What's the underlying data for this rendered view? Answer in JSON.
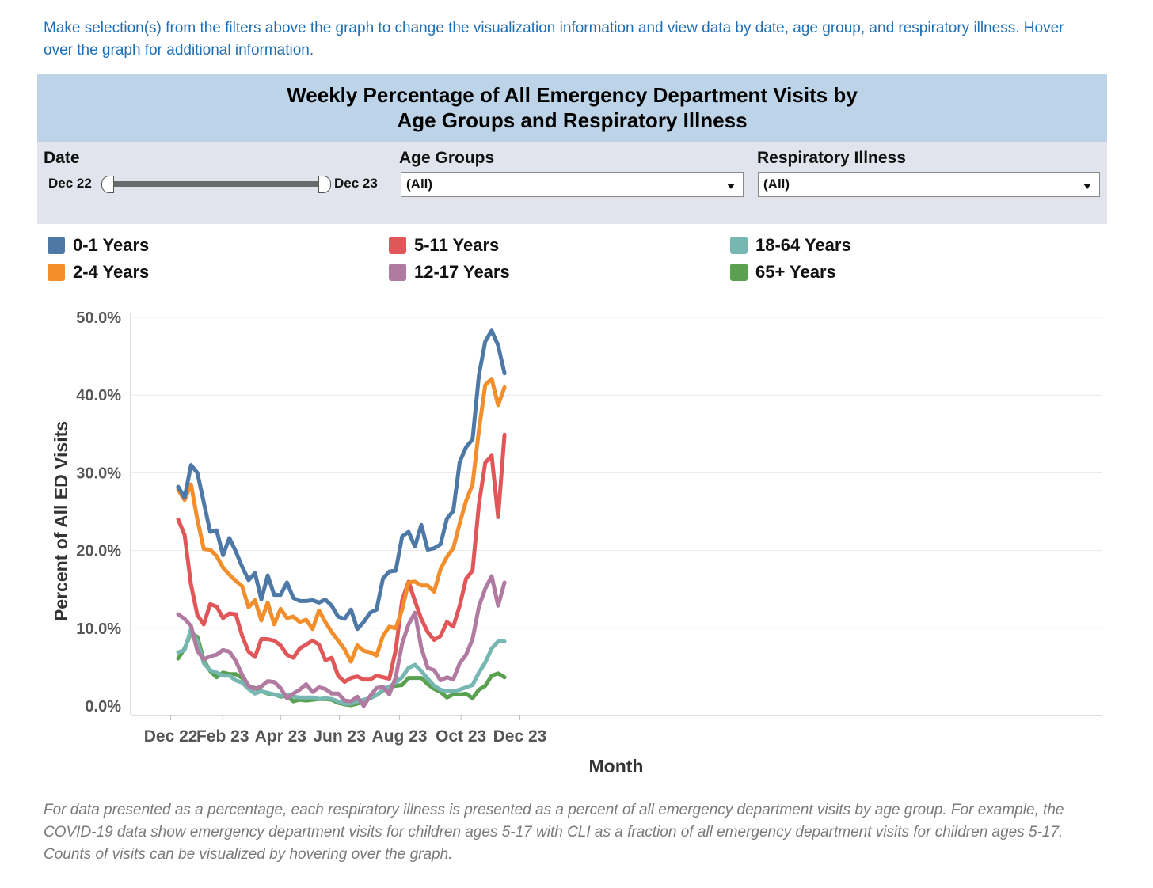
{
  "intro_text": "Make selection(s) from the filters above the graph to change the visualization information and view data by date, age group, and respiratory illness. Hover over the graph for additional information.",
  "header": {
    "title_line1": "Weekly Percentage of All Emergency Department Visits by",
    "title_line2": "Age Groups and Respiratory Illness"
  },
  "filters": {
    "date": {
      "label": "Date",
      "start": "Dec 22",
      "end": "Dec 23"
    },
    "age_groups": {
      "label": "Age Groups",
      "selected": "(All)"
    },
    "respiratory_illness": {
      "label": "Respiratory Illness",
      "selected": "(All)"
    }
  },
  "legend": [
    {
      "label": "0-1 Years",
      "color": "#4e79a7"
    },
    {
      "label": "2-4 Years",
      "color": "#f28e2b"
    },
    {
      "label": "5-11 Years",
      "color": "#e15759"
    },
    {
      "label": "12-17 Years",
      "color": "#b07aa1"
    },
    {
      "label": "18-64 Years",
      "color": "#76b7b2"
    },
    {
      "label": "65+ Years",
      "color": "#59a14f"
    }
  ],
  "chart_data": {
    "type": "line",
    "xlabel": "Month",
    "ylabel": "Percent of All ED Visits",
    "ylim": [
      0,
      50
    ],
    "y_ticks": [
      "0.0%",
      "10.0%",
      "20.0%",
      "30.0%",
      "40.0%",
      "50.0%"
    ],
    "x_ticks": [
      "Dec 22",
      "Feb 23",
      "Apr 23",
      "Jun 23",
      "Aug 23",
      "Oct 23",
      "Dec 23"
    ],
    "grid": true,
    "x_weeks": 55,
    "series": [
      {
        "name": "0-1 Years",
        "color": "#4e79a7",
        "values": [
          28.2,
          26.8,
          31.0,
          30.0,
          26.2,
          22.4,
          22.6,
          19.4,
          21.6,
          19.9,
          17.9,
          16.2,
          17.1,
          13.7,
          16.8,
          14.3,
          14.3,
          15.9,
          13.9,
          13.5,
          13.5,
          13.6,
          13.3,
          13.7,
          12.9,
          11.5,
          11.2,
          12.4,
          9.9,
          10.8,
          12.0,
          12.4,
          16.4,
          17.3,
          17.4,
          21.8,
          22.4,
          20.5,
          23.3,
          20.1,
          20.3,
          20.8,
          24.1,
          25.1,
          31.4,
          33.3,
          34.3,
          42.6,
          46.9,
          48.3,
          46.4,
          42.8
        ]
      },
      {
        "name": "2-4 Years",
        "color": "#f28e2b",
        "values": [
          27.8,
          26.5,
          28.5,
          24.0,
          20.2,
          20.1,
          19.3,
          17.8,
          16.9,
          16.1,
          15.4,
          12.7,
          13.6,
          11.0,
          13.3,
          10.5,
          12.5,
          11.3,
          11.5,
          10.8,
          11.1,
          9.9,
          12.3,
          10.8,
          9.5,
          8.4,
          7.3,
          5.7,
          7.8,
          7.1,
          6.9,
          6.5,
          9.0,
          10.2,
          10.0,
          12.4,
          15.9,
          16.0,
          15.5,
          15.5,
          14.7,
          17.6,
          19.2,
          20.3,
          23.5,
          26.4,
          28.5,
          35.5,
          41.3,
          42.1,
          38.7,
          41.0
        ]
      },
      {
        "name": "5-11 Years",
        "color": "#e15759",
        "values": [
          24.0,
          22.0,
          15.6,
          11.7,
          10.5,
          13.1,
          12.8,
          11.3,
          11.9,
          11.8,
          9.0,
          7.0,
          6.3,
          8.6,
          8.6,
          8.4,
          7.8,
          6.6,
          6.2,
          7.4,
          7.9,
          8.4,
          7.9,
          5.9,
          6.2,
          3.9,
          3.1,
          3.6,
          3.8,
          3.4,
          3.4,
          3.9,
          3.7,
          3.5,
          7.2,
          13.6,
          16.0,
          13.5,
          11.2,
          9.5,
          8.5,
          9.0,
          10.8,
          10.2,
          12.9,
          16.4,
          17.4,
          26.0,
          31.3,
          32.2,
          24.3,
          34.9
        ]
      },
      {
        "name": "12-17 Years",
        "color": "#b07aa1",
        "values": [
          11.8,
          11.2,
          10.3,
          7.1,
          6.0,
          6.4,
          6.6,
          7.2,
          7.0,
          5.8,
          4.0,
          2.6,
          2.2,
          2.5,
          3.2,
          3.1,
          2.3,
          1.0,
          1.6,
          2.1,
          2.8,
          1.8,
          2.4,
          2.2,
          1.6,
          1.6,
          0.7,
          0.6,
          1.2,
          0.0,
          1.3,
          2.3,
          2.5,
          1.5,
          3.7,
          8.0,
          10.5,
          12.0,
          7.5,
          4.9,
          4.6,
          3.3,
          3.7,
          3.4,
          5.5,
          6.6,
          8.6,
          12.8,
          15.1,
          16.7,
          12.9,
          15.9
        ]
      },
      {
        "name": "18-64 Years",
        "color": "#76b7b2",
        "values": [
          6.9,
          7.2,
          9.9,
          8.3,
          5.5,
          4.6,
          4.3,
          3.9,
          3.9,
          3.3,
          3.0,
          2.2,
          1.6,
          1.9,
          1.7,
          1.5,
          1.3,
          1.5,
          1.2,
          1.1,
          1.1,
          1.1,
          0.9,
          1.0,
          0.9,
          0.6,
          0.3,
          0.3,
          0.6,
          0.8,
          1.0,
          1.4,
          2.1,
          2.5,
          3.0,
          3.7,
          4.9,
          5.3,
          4.5,
          3.5,
          2.6,
          2.1,
          1.9,
          1.9,
          2.1,
          2.4,
          2.7,
          4.3,
          5.6,
          7.4,
          8.3,
          8.3
        ]
      },
      {
        "name": "65+ Years",
        "color": "#59a14f",
        "values": [
          6.1,
          7.4,
          9.4,
          8.9,
          5.9,
          4.5,
          3.7,
          4.3,
          4.1,
          4.1,
          3.6,
          2.6,
          2.3,
          1.9,
          1.6,
          1.5,
          1.2,
          1.3,
          0.6,
          0.8,
          0.7,
          0.8,
          0.9,
          0.9,
          0.8,
          0.4,
          0.2,
          0.1,
          0.3,
          0.6,
          1.0,
          1.4,
          2.0,
          2.4,
          2.6,
          2.7,
          3.6,
          3.6,
          3.6,
          2.8,
          2.2,
          1.8,
          1.1,
          1.5,
          1.5,
          1.6,
          1.0,
          2.1,
          2.6,
          3.9,
          4.2,
          3.7
        ]
      }
    ]
  },
  "footnote": "For data presented as a percentage, each respiratory illness is presented as a percent of all emergency department visits by age group. For example, the COVID-19 data show emergency department visits for children ages 5-17 with CLI as a fraction of all emergency department visits for children ages 5-17. Counts of visits can be visualized by hovering over the graph."
}
